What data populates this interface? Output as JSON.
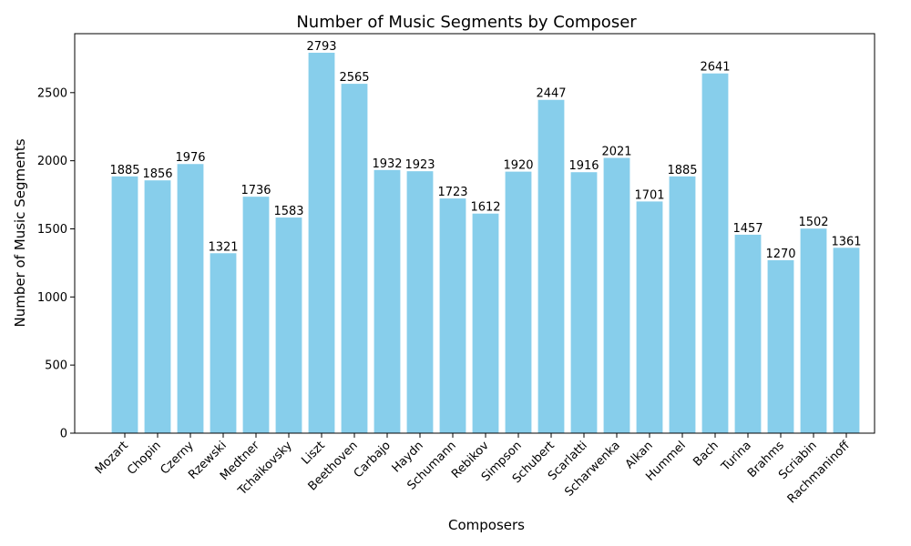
{
  "chart_data": {
    "type": "bar",
    "title": "Number of Music Segments by Composer",
    "xlabel": "Composers",
    "ylabel": "Number of Music Segments",
    "categories": [
      "Mozart",
      "Chopin",
      "Czerny",
      "Rzewski",
      "Medtner",
      "Tchaikovsky",
      "Liszt",
      "Beethoven",
      "Carbajo",
      "Haydn",
      "Schumann",
      "Rebikov",
      "Simpson",
      "Schubert",
      "Scarlatti",
      "Scharwenka",
      "Alkan",
      "Hummel",
      "Bach",
      "Turina",
      "Brahms",
      "Scriabin",
      "Rachmaninoff"
    ],
    "values": [
      1885,
      1856,
      1976,
      1321,
      1736,
      1583,
      2793,
      2565,
      1932,
      1923,
      1723,
      1612,
      1920,
      2447,
      1916,
      2021,
      1701,
      1885,
      2641,
      1457,
      1270,
      1502,
      1361
    ],
    "yticks": [
      0,
      500,
      1000,
      1500,
      2000,
      2500
    ],
    "ylim": [
      0,
      2933
    ],
    "grid": false,
    "bar_color": "#87ceeb"
  }
}
